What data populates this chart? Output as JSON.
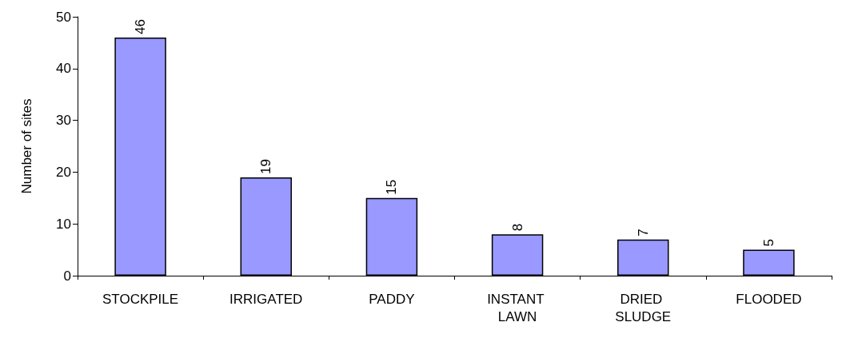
{
  "chart_data": {
    "type": "bar",
    "ylabel": "Number of sites",
    "categories": [
      "STOCKPILE",
      "IRRIGATED",
      "PADDY",
      "INSTANT LAWN",
      "DRIED SLUDGE",
      "FLOODED"
    ],
    "values": [
      46,
      19,
      15,
      8,
      7,
      5
    ],
    "color": "#9999ff",
    "ylim": [
      0,
      50
    ],
    "yticks": [
      0,
      10,
      20,
      30,
      40,
      50
    ],
    "grid": false,
    "data_labels": true
  }
}
